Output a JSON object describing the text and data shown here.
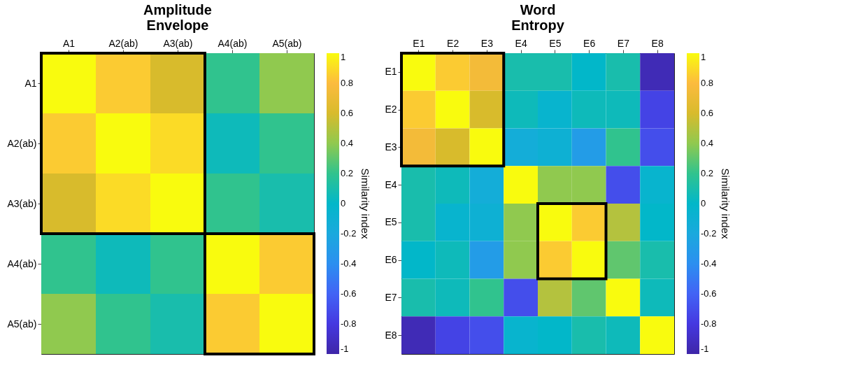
{
  "chart_data": [
    {
      "type": "heatmap",
      "title": "Amplitude Envelope",
      "categories": [
        "A1",
        "A2(ab)",
        "A3(ab)",
        "A4(ab)",
        "A5(ab)"
      ],
      "y_categories": [
        "A1",
        "A2(ab)",
        "A3(ab)",
        "A4(ab)",
        "A5(ab)"
      ],
      "cells": [
        [
          1,
          0.85,
          0.6,
          0.2,
          0.4
        ],
        [
          0.85,
          1,
          0.9,
          0.05,
          0.2
        ],
        [
          0.6,
          0.9,
          1,
          0.2,
          0.1
        ],
        [
          0.2,
          0.05,
          0.2,
          1,
          0.85
        ],
        [
          0.4,
          0.2,
          0.1,
          0.85,
          1
        ]
      ],
      "clim": [
        -1,
        1
      ],
      "cticks": [
        -1,
        -0.8,
        -0.6,
        -0.4,
        -0.2,
        0,
        0.2,
        0.4,
        0.6,
        0.8,
        1
      ],
      "clabel": "Similarity index"
    },
    {
      "type": "heatmap",
      "title": "Word Entropy",
      "categories": [
        "E1",
        "E2",
        "E3",
        "E4",
        "E5",
        "E6",
        "E7",
        "E8"
      ],
      "y_categories": [
        "E1",
        "E2",
        "E3",
        "E4",
        "E5",
        "E6",
        "E7",
        "E8"
      ],
      "cells": [
        [
          1,
          0.85,
          0.75,
          0.1,
          0.1,
          0,
          0.1,
          -0.95
        ],
        [
          0.85,
          1,
          0.6,
          0.05,
          -0.05,
          0.05,
          0.05,
          -0.75
        ],
        [
          0.75,
          0.6,
          1,
          -0.15,
          -0.1,
          -0.3,
          0.2,
          -0.7
        ],
        [
          0.1,
          0.05,
          -0.15,
          1,
          0.4,
          0.4,
          -0.7,
          -0.05
        ],
        [
          0.1,
          -0.05,
          -0.1,
          0.4,
          1,
          0.85,
          0.5,
          0
        ],
        [
          0,
          0.05,
          -0.3,
          0.4,
          0.85,
          1,
          0.3,
          0.1
        ],
        [
          0.1,
          0.05,
          0.2,
          -0.7,
          0.5,
          0.3,
          1,
          0.05
        ],
        [
          -0.95,
          -0.75,
          -0.7,
          -0.05,
          0,
          0.1,
          0.05,
          1
        ]
      ],
      "clim": [
        -1,
        1
      ],
      "cticks": [
        -1,
        -0.8,
        -0.6,
        -0.4,
        -0.2,
        0,
        0.2,
        0.4,
        0.6,
        0.8,
        1
      ],
      "clabel": "Similarity index"
    }
  ]
}
